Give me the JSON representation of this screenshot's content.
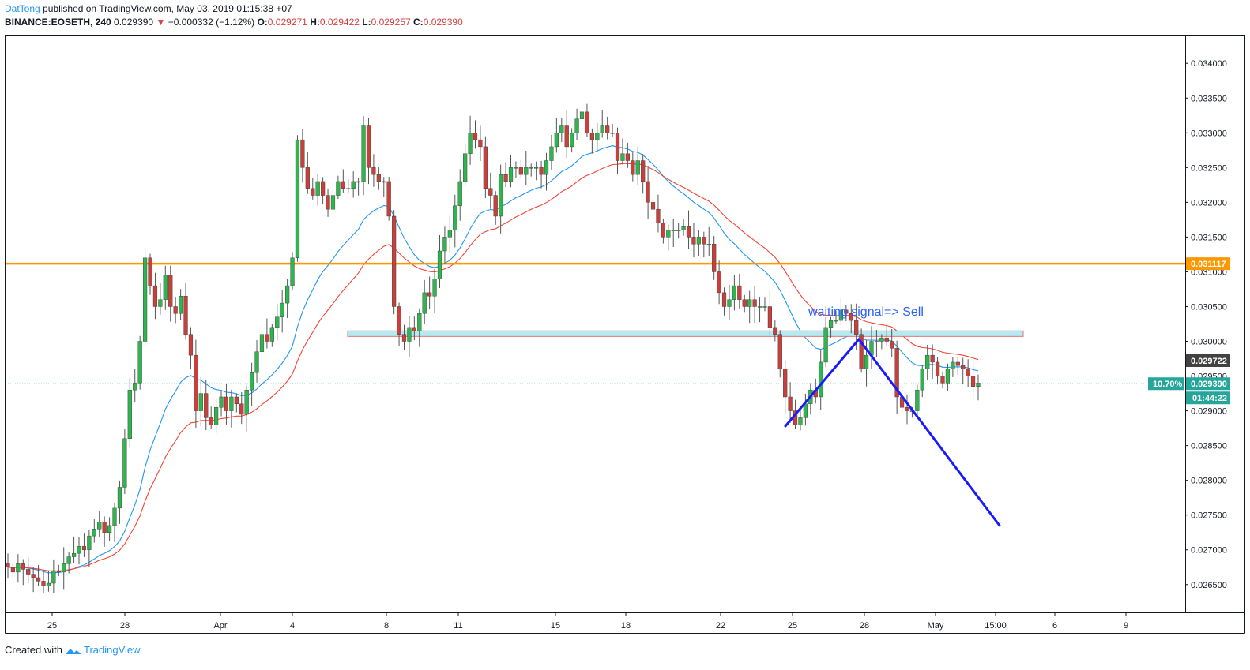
{
  "header": {
    "author": "DatTong",
    "published": "published on TradingView.com, May 03, 2019 01:15:38 +07",
    "symbol": "BINANCE:EOSETH, 240",
    "last": "0.029390",
    "change_arrow": "▼",
    "change": "−0.000332 (−1.12%)",
    "o_label": "O:",
    "o_value": "0.029271",
    "h_label": "H:",
    "h_value": "0.029422",
    "l_label": "L:",
    "l_value": "0.029257",
    "c_label": "C:",
    "c_value": "0.029390"
  },
  "footer": {
    "created": "Created with",
    "brand": "TradingView"
  },
  "colors": {
    "up": "#26a69a",
    "down": "#ef5350",
    "up_candle": "#2eb54e",
    "down_candle": "#c8403c",
    "ma_fast": "#2196f3",
    "ma_slow": "#f44336",
    "resistance": "#ff9800",
    "zone_fill": "#b2ebf2",
    "zone_border": "#e57373",
    "projection": "#1a1aff",
    "last_price": "#26a69a",
    "ma_label": "#424242"
  },
  "chart_data": {
    "type": "candlestick",
    "title": "",
    "y_ticks": [
      "0.026500",
      "0.027000",
      "0.027500",
      "0.028000",
      "0.028500",
      "0.029000",
      "0.029500",
      "0.030000",
      "0.030500",
      "0.031000",
      "0.031500",
      "0.032000",
      "0.032500",
      "0.033000",
      "0.033500",
      "0.034000"
    ],
    "ylim": [
      0.0261,
      0.0344
    ],
    "x_ticks": [
      "25",
      "28",
      "Apr",
      "4",
      "8",
      "11",
      "15",
      "18",
      "22",
      "25",
      "28",
      "May",
      "15:00",
      "6",
      "9"
    ],
    "resistance_level": 0.031117,
    "resistance_label": "0.031117",
    "ma_label": "0.029722",
    "last_price_label": "0.029390",
    "last_price_pct": "10.70%",
    "countdown": "01:44:22",
    "annotation": "waiting signal=> Sell",
    "zone": {
      "low": 0.03007,
      "high": 0.03015
    },
    "projection_path": [
      [
        0.02878,
        "start"
      ],
      [
        0.03003,
        "peak"
      ],
      [
        0.02735,
        "target"
      ]
    ],
    "closes": [
      0.02675,
      0.02668,
      0.0268,
      0.02672,
      0.02665,
      0.0266,
      0.02655,
      0.02648,
      0.02652,
      0.0267,
      0.02668,
      0.0268,
      0.0269,
      0.02695,
      0.02705,
      0.027,
      0.0272,
      0.0273,
      0.0274,
      0.02725,
      0.02735,
      0.0276,
      0.0279,
      0.0286,
      0.0293,
      0.0294,
      0.03,
      0.0312,
      0.0308,
      0.0305,
      0.0306,
      0.03095,
      0.0305,
      0.0304,
      0.03065,
      0.0301,
      0.0298,
      0.029,
      0.02925,
      0.0289,
      0.0288,
      0.02905,
      0.0292,
      0.029,
      0.0292,
      0.0291,
      0.02895,
      0.0293,
      0.02955,
      0.02985,
      0.0301,
      0.03,
      0.0302,
      0.03035,
      0.03055,
      0.0308,
      0.0312,
      0.0329,
      0.0325,
      0.0322,
      0.0321,
      0.0323,
      0.0321,
      0.0319,
      0.0321,
      0.0323,
      0.0322,
      0.0322,
      0.0323,
      0.0323,
      0.0331,
      0.0325,
      0.0324,
      0.0323,
      0.0323,
      0.0318,
      0.0305,
      0.0301,
      0.03,
      0.0302,
      0.03015,
      0.0304,
      0.0307,
      0.03065,
      0.0309,
      0.0313,
      0.0315,
      0.0316,
      0.03195,
      0.0323,
      0.0327,
      0.033,
      0.0329,
      0.0328,
      0.0322,
      0.0321,
      0.0318,
      0.0324,
      0.0323,
      0.0325,
      0.0325,
      0.0324,
      0.0325,
      0.0325,
      0.0325,
      0.0324,
      0.0326,
      0.0328,
      0.033,
      0.0331,
      0.0328,
      0.033,
      0.0332,
      0.0333,
      0.033,
      0.0329,
      0.033,
      0.0331,
      0.033,
      0.033,
      0.0326,
      0.0327,
      0.0326,
      0.0324,
      0.0326,
      0.0323,
      0.032,
      0.0319,
      0.0317,
      0.0315,
      0.0316,
      0.0316,
      0.0316,
      0.03165,
      0.0315,
      0.0314,
      0.0315,
      0.0314,
      0.0314,
      0.031,
      0.0307,
      0.0305,
      0.0306,
      0.0308,
      0.0306,
      0.0305,
      0.0306,
      0.0305,
      0.0305,
      0.0305,
      0.0302,
      0.0301,
      0.0296,
      0.0292,
      0.029,
      0.0288,
      0.0289,
      0.0291,
      0.0293,
      0.0292,
      0.0297,
      0.0302,
      0.0303,
      0.0303,
      0.03045,
      0.0304,
      0.0303,
      0.0301,
      0.0296,
      0.0298,
      0.03,
      0.03,
      0.03005,
      0.03,
      0.0299,
      0.0292,
      0.02905,
      0.029,
      0.029,
      0.0293,
      0.0296,
      0.0298,
      0.0297,
      0.0295,
      0.0294,
      0.0296,
      0.0297,
      0.02965,
      0.0296,
      0.0295,
      0.02935,
      0.0294
    ]
  }
}
